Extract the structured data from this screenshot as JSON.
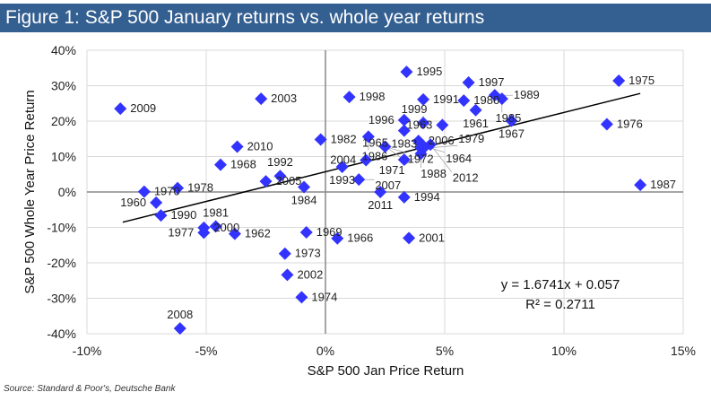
{
  "title": "Figure 1: S&P 500 January returns vs. whole year returns",
  "source": "Source: Standard & Poor's, Deutsche Bank",
  "colors": {
    "title_bg": "#345f91",
    "marker": "#3333ff",
    "trendline": "#000000",
    "grid": "#d9d9d9"
  },
  "chart_data": {
    "type": "scatter",
    "xlabel": "S&P 500 Jan Price Return",
    "ylabel": "S&P 500 Whole Year Price Return",
    "xlim": [
      -10,
      15
    ],
    "ylim": [
      -40,
      40
    ],
    "xticks": [
      -10,
      -5,
      0,
      5,
      10,
      15
    ],
    "yticks": [
      -40,
      -30,
      -20,
      -10,
      0,
      10,
      20,
      30,
      40
    ],
    "xtick_labels": [
      "-10%",
      "-5%",
      "0%",
      "5%",
      "10%",
      "15%"
    ],
    "ytick_labels": [
      "-40%",
      "-30%",
      "-20%",
      "-10%",
      "0%",
      "10%",
      "20%",
      "30%",
      "40%"
    ],
    "grid": true,
    "trendline": {
      "slope": 1.6741,
      "intercept": 5.7,
      "x_range": [
        -8.5,
        13.2
      ]
    },
    "equation": "y = 1.6741x + 0.057",
    "r_squared": "R² = 0.2711",
    "points": [
      {
        "label": "1995",
        "x": 3.4,
        "y": 33.9
      },
      {
        "label": "1997",
        "x": 6.0,
        "y": 30.9
      },
      {
        "label": "1975",
        "x": 12.3,
        "y": 31.4
      },
      {
        "label": "1998",
        "x": 1.0,
        "y": 26.8
      },
      {
        "label": "2003",
        "x": -2.7,
        "y": 26.3
      },
      {
        "label": "1991",
        "x": 4.1,
        "y": 26.1
      },
      {
        "label": "1980",
        "x": 5.8,
        "y": 25.8
      },
      {
        "label": "1989",
        "x": 7.1,
        "y": 27.3
      },
      {
        "label": "1985",
        "x": 7.4,
        "y": 26.3
      },
      {
        "label": "1961",
        "x": 6.3,
        "y": 23.1
      },
      {
        "label": "2009",
        "x": -8.6,
        "y": 23.5
      },
      {
        "label": "1963",
        "x": 4.9,
        "y": 18.9
      },
      {
        "label": "1999",
        "x": 4.1,
        "y": 19.5
      },
      {
        "label": "1996",
        "x": 3.3,
        "y": 20.3
      },
      {
        "label": "1983",
        "x": 3.3,
        "y": 17.3
      },
      {
        "label": "1967",
        "x": 7.8,
        "y": 20.1
      },
      {
        "label": "1976",
        "x": 11.8,
        "y": 19.1
      },
      {
        "label": "1982",
        "x": -0.2,
        "y": 14.8
      },
      {
        "label": "1986",
        "x": 1.8,
        "y": 15.6
      },
      {
        "label": "1972",
        "x": 2.5,
        "y": 12.8
      },
      {
        "label": "2006",
        "x": 3.9,
        "y": 14.4
      },
      {
        "label": "1964",
        "x": 4.1,
        "y": 13.0
      },
      {
        "label": "1988",
        "x": 4.0,
        "y": 12.4
      },
      {
        "label": "1979",
        "x": 4.1,
        "y": 12.3
      },
      {
        "label": "2012",
        "x": 4.4,
        "y": 13.4
      },
      {
        "label": "1971",
        "x": 4.0,
        "y": 10.8
      },
      {
        "label": "1965",
        "x": 3.3,
        "y": 9.1
      },
      {
        "label": "2004",
        "x": 1.7,
        "y": 9.0
      },
      {
        "label": "1993",
        "x": 0.7,
        "y": 7.1
      },
      {
        "label": "2007",
        "x": 1.4,
        "y": 3.5
      },
      {
        "label": "2011",
        "x": 2.3,
        "y": 0.0
      },
      {
        "label": "1994",
        "x": 3.3,
        "y": -1.5
      },
      {
        "label": "1987",
        "x": 13.2,
        "y": 2.0
      },
      {
        "label": "2001",
        "x": 3.5,
        "y": -13.0
      },
      {
        "label": "1966",
        "x": 0.5,
        "y": -13.1
      },
      {
        "label": "1969",
        "x": -0.8,
        "y": -11.4
      },
      {
        "label": "1973",
        "x": -1.7,
        "y": -17.4
      },
      {
        "label": "2002",
        "x": -1.6,
        "y": -23.4
      },
      {
        "label": "1974",
        "x": -1.0,
        "y": -29.7
      },
      {
        "label": "2008",
        "x": -6.1,
        "y": -38.5
      },
      {
        "label": "2010",
        "x": -3.7,
        "y": 12.8
      },
      {
        "label": "1968",
        "x": -4.4,
        "y": 7.7
      },
      {
        "label": "2005",
        "x": -2.5,
        "y": 3.0
      },
      {
        "label": "1992",
        "x": -1.9,
        "y": 4.5
      },
      {
        "label": "1984",
        "x": -0.9,
        "y": 1.4
      },
      {
        "label": "1970",
        "x": -7.6,
        "y": 0.1
      },
      {
        "label": "1978",
        "x": -6.2,
        "y": 1.1
      },
      {
        "label": "1960",
        "x": -7.1,
        "y": -3.0
      },
      {
        "label": "1990",
        "x": -6.9,
        "y": -6.6
      },
      {
        "label": "2000",
        "x": -5.1,
        "y": -10.1
      },
      {
        "label": "1981",
        "x": -4.6,
        "y": -9.7
      },
      {
        "label": "1977",
        "x": -5.1,
        "y": -11.5
      },
      {
        "label": "1962",
        "x": -3.8,
        "y": -11.8
      }
    ]
  }
}
